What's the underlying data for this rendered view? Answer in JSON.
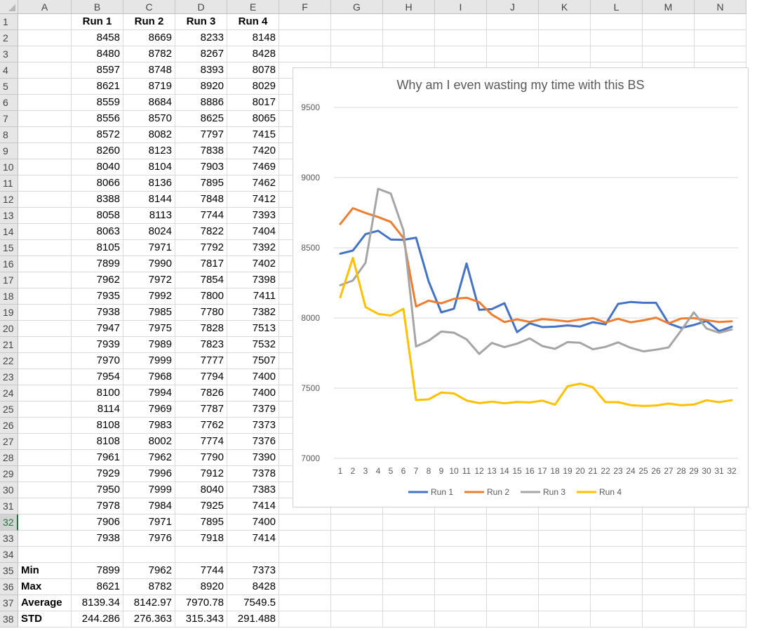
{
  "sheet": {
    "columns": [
      "A",
      "B",
      "C",
      "D",
      "E",
      "F",
      "G",
      "H",
      "I",
      "J",
      "K",
      "L",
      "M",
      "N"
    ],
    "header_row": [
      "",
      "Run 1",
      "Run 2",
      "Run 3",
      "Run 4"
    ],
    "rows": [
      [
        "",
        "8458",
        "8669",
        "8233",
        "8148"
      ],
      [
        "",
        "8480",
        "8782",
        "8267",
        "8428"
      ],
      [
        "",
        "8597",
        "8748",
        "8393",
        "8078"
      ],
      [
        "",
        "8621",
        "8719",
        "8920",
        "8029"
      ],
      [
        "",
        "8559",
        "8684",
        "8886",
        "8017"
      ],
      [
        "",
        "8556",
        "8570",
        "8625",
        "8065"
      ],
      [
        "",
        "8572",
        "8082",
        "7797",
        "7415"
      ],
      [
        "",
        "8260",
        "8123",
        "7838",
        "7420"
      ],
      [
        "",
        "8040",
        "8104",
        "7903",
        "7469"
      ],
      [
        "",
        "8066",
        "8136",
        "7895",
        "7462"
      ],
      [
        "",
        "8388",
        "8144",
        "7848",
        "7412"
      ],
      [
        "",
        "8058",
        "8113",
        "7744",
        "7393"
      ],
      [
        "",
        "8063",
        "8024",
        "7822",
        "7404"
      ],
      [
        "",
        "8105",
        "7971",
        "7792",
        "7392"
      ],
      [
        "",
        "7899",
        "7990",
        "7817",
        "7402"
      ],
      [
        "",
        "7962",
        "7972",
        "7854",
        "7398"
      ],
      [
        "",
        "7935",
        "7992",
        "7800",
        "7411"
      ],
      [
        "",
        "7938",
        "7985",
        "7780",
        "7382"
      ],
      [
        "",
        "7947",
        "7975",
        "7828",
        "7513"
      ],
      [
        "",
        "7939",
        "7989",
        "7823",
        "7532"
      ],
      [
        "",
        "7970",
        "7999",
        "7777",
        "7507"
      ],
      [
        "",
        "7954",
        "7968",
        "7794",
        "7400"
      ],
      [
        "",
        "8100",
        "7994",
        "7826",
        "7400"
      ],
      [
        "",
        "8114",
        "7969",
        "7787",
        "7379"
      ],
      [
        "",
        "8108",
        "7983",
        "7762",
        "7373"
      ],
      [
        "",
        "8108",
        "8002",
        "7774",
        "7376"
      ],
      [
        "",
        "7961",
        "7962",
        "7790",
        "7390"
      ],
      [
        "",
        "7929",
        "7996",
        "7912",
        "7378"
      ],
      [
        "",
        "7950",
        "7999",
        "8040",
        "7383"
      ],
      [
        "",
        "7978",
        "7984",
        "7925",
        "7414"
      ],
      [
        "",
        "7906",
        "7971",
        "7895",
        "7400"
      ],
      [
        "",
        "7938",
        "7976",
        "7918",
        "7414"
      ],
      [
        "",
        "",
        "",
        "",
        ""
      ],
      [
        "Min",
        "7899",
        "7962",
        "7744",
        "7373"
      ],
      [
        "Max",
        "8621",
        "8782",
        "8920",
        "8428"
      ],
      [
        "Average",
        "8139.34",
        "8142.97",
        "7970.78",
        "7549.5"
      ],
      [
        "STD",
        "244.286",
        "276.363",
        "315.343",
        "291.488"
      ]
    ],
    "active_row": 32
  },
  "chart_data": {
    "type": "line",
    "title": "Why am I even wasting my time with this BS",
    "xlabel": "",
    "ylabel": "",
    "ylim": [
      7000,
      9500
    ],
    "yticks": [
      7000,
      7500,
      8000,
      8500,
      9000,
      9500
    ],
    "x": [
      1,
      2,
      3,
      4,
      5,
      6,
      7,
      8,
      9,
      10,
      11,
      12,
      13,
      14,
      15,
      16,
      17,
      18,
      19,
      20,
      21,
      22,
      23,
      24,
      25,
      26,
      27,
      28,
      29,
      30,
      31,
      32
    ],
    "legend_position": "bottom",
    "grid": true,
    "series": [
      {
        "name": "Run 1",
        "color": "#4472C4",
        "values": [
          8458,
          8480,
          8597,
          8621,
          8559,
          8556,
          8572,
          8260,
          8040,
          8066,
          8388,
          8058,
          8063,
          8105,
          7899,
          7962,
          7935,
          7938,
          7947,
          7939,
          7970,
          7954,
          8100,
          8114,
          8108,
          8108,
          7961,
          7929,
          7950,
          7978,
          7906,
          7938
        ]
      },
      {
        "name": "Run 2",
        "color": "#ED7D31",
        "values": [
          8669,
          8782,
          8748,
          8719,
          8684,
          8570,
          8082,
          8123,
          8104,
          8136,
          8144,
          8113,
          8024,
          7971,
          7990,
          7972,
          7992,
          7985,
          7975,
          7989,
          7999,
          7968,
          7994,
          7969,
          7983,
          8002,
          7962,
          7996,
          7999,
          7984,
          7971,
          7976
        ]
      },
      {
        "name": "Run 3",
        "color": "#A5A5A5",
        "values": [
          8233,
          8267,
          8393,
          8920,
          8886,
          8625,
          7797,
          7838,
          7903,
          7895,
          7848,
          7744,
          7822,
          7792,
          7817,
          7854,
          7800,
          7780,
          7828,
          7823,
          7777,
          7794,
          7826,
          7787,
          7762,
          7774,
          7790,
          7912,
          8040,
          7925,
          7895,
          7918
        ]
      },
      {
        "name": "Run 4",
        "color": "#FFC000",
        "values": [
          8148,
          8428,
          8078,
          8029,
          8017,
          8065,
          7415,
          7420,
          7469,
          7462,
          7412,
          7393,
          7404,
          7392,
          7402,
          7398,
          7411,
          7382,
          7513,
          7532,
          7507,
          7400,
          7400,
          7379,
          7373,
          7376,
          7390,
          7378,
          7383,
          7414,
          7400,
          7414
        ]
      }
    ]
  }
}
